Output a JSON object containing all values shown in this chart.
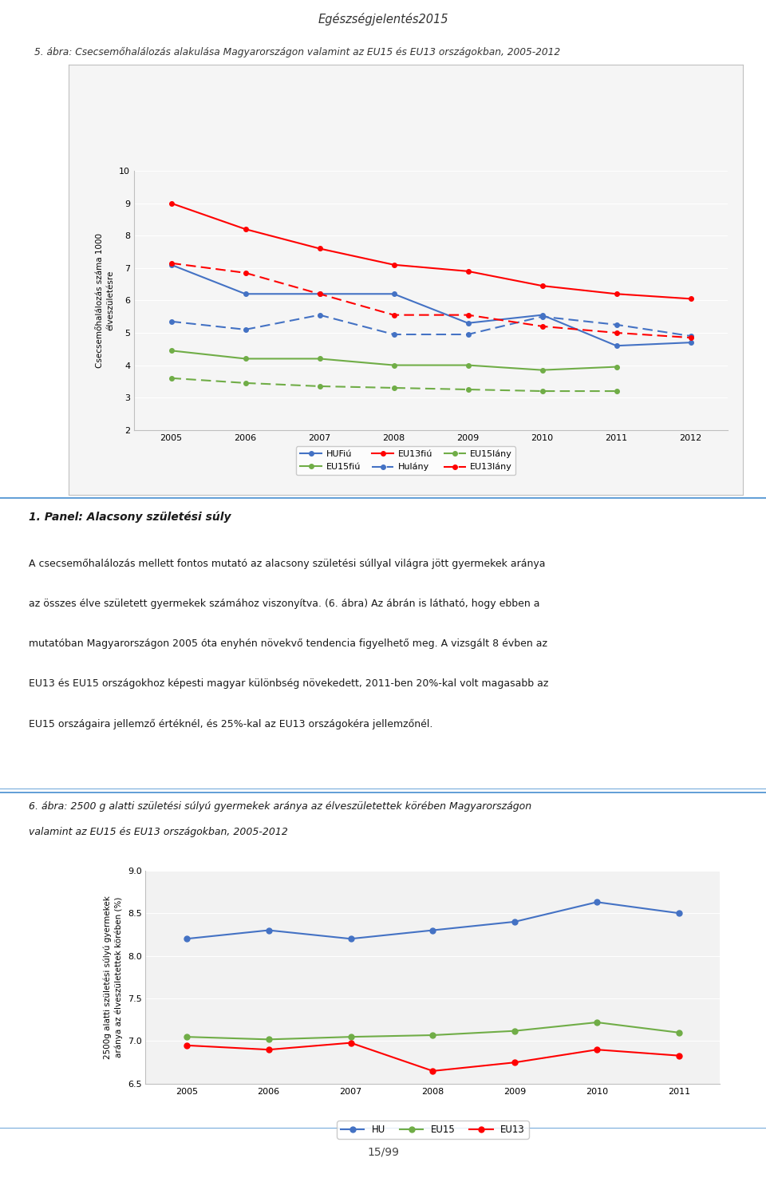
{
  "page_title": "Egészségjelentés2015",
  "chart5_title": "5. ábra: Csecsemőhalálozás alakulása Magyarországon valamint az EU15 és EU13 országokban, 2005-2012",
  "chart5_ylabel": "Csecsemőhalálozás száma 1000\nélveszületésre",
  "chart5_years": [
    2005,
    2006,
    2007,
    2008,
    2009,
    2010,
    2011,
    2012
  ],
  "chart5_HUfiu": [
    7.1,
    6.2,
    6.2,
    6.2,
    5.3,
    5.55,
    4.6,
    4.7
  ],
  "chart5_EU15fiu": [
    4.45,
    4.2,
    4.2,
    4.0,
    4.0,
    3.85,
    3.95,
    null
  ],
  "chart5_EU13fiu": [
    9.0,
    8.2,
    7.6,
    7.1,
    6.9,
    6.45,
    6.2,
    6.05
  ],
  "chart5_HUlany": [
    5.35,
    5.1,
    5.55,
    4.95,
    4.95,
    5.5,
    5.25,
    4.9
  ],
  "chart5_EU15lany": [
    3.6,
    3.45,
    3.35,
    3.3,
    3.25,
    3.2,
    3.2,
    null
  ],
  "chart5_EU13lany": [
    7.15,
    6.85,
    6.2,
    5.55,
    5.55,
    5.2,
    5.0,
    4.85
  ],
  "chart5_ylim": [
    2,
    10
  ],
  "chart5_yticks": [
    2,
    3,
    4,
    5,
    6,
    7,
    8,
    9,
    10
  ],
  "panel_title": "1. Panel: Alacsony születési súly",
  "panel_line1": "A csecsemőhalálozás mellett fontos mutató az alacsony születési súllyal világra jött gyermekek aránya",
  "panel_line2": "az összes élve született gyermekek számához viszonyítva. (6. ábra) Az ábrán is látható, hogy ebben a",
  "panel_line3": "mutatóban Magyarországon 2005 óta enyhén növekvő tendencia figyelhető meg. A vizsgált 8 évben az",
  "panel_line4": "EU13 és EU15 országokhoz képesti magyar különbség növekedett, 2011-ben 20%-kal volt magasabb az",
  "panel_line5": "EU15 országaira jellemző értéknél, és 25%-kal az EU13 országokéra jellemzőnél.",
  "chart6_title_line1": "6. ábra: 2500 g alatti születési súlyú gyermekek aránya az élveszületettek körében Magyarországon",
  "chart6_title_line2": "valamint az EU15 és EU13 országokban, 2005-2012",
  "chart6_ylabel": "2500g alatti születési súlyú gyermekek\naránya az élveszületettek körében (%)",
  "chart6_years": [
    2005,
    2006,
    2007,
    2008,
    2009,
    2010,
    2011
  ],
  "chart6_HU": [
    8.2,
    8.3,
    8.2,
    8.3,
    8.4,
    8.63,
    8.5
  ],
  "chart6_EU15": [
    7.05,
    7.02,
    7.05,
    7.07,
    7.12,
    7.22,
    7.1
  ],
  "chart6_EU13": [
    6.95,
    6.9,
    6.98,
    6.65,
    6.75,
    6.9,
    6.83
  ],
  "chart6_ylim": [
    6.5,
    9.0
  ],
  "chart6_yticks": [
    6.5,
    7.0,
    7.5,
    8.0,
    8.5,
    9.0
  ],
  "footer": "15/99",
  "color_blue": "#4472C4",
  "color_green": "#70AD47",
  "color_red": "#FF0000",
  "color_panel_bg": "#B8CFE2",
  "color_chart_inner_bg": "#F2F2F2",
  "color_page_bg": "#FFFFFF",
  "color_border": "#BFBFBF",
  "color_top_line": "#4472C4"
}
